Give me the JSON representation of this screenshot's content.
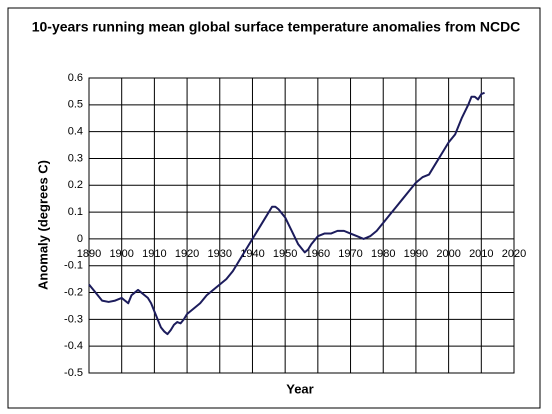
{
  "chart_data": {
    "type": "line",
    "title": "10-years running mean global surface temperature anomalies from NCDC",
    "xlabel": "Year",
    "ylabel": "Anomaly (degrees C)",
    "xlim": [
      1890,
      2020
    ],
    "xticks": [
      1890,
      1900,
      1910,
      1920,
      1930,
      1940,
      1950,
      1960,
      1970,
      1980,
      1990,
      2000,
      2010,
      2020
    ],
    "ylim": [
      -0.5,
      0.6
    ],
    "yticks": [
      -0.5,
      -0.4,
      -0.3,
      -0.2,
      -0.1,
      0,
      0.1,
      0.2,
      0.3,
      0.4,
      0.5,
      0.6
    ],
    "grid": true,
    "x": [
      1890,
      1892,
      1894,
      1896,
      1898,
      1900,
      1901,
      1902,
      1903,
      1904,
      1905,
      1906,
      1907,
      1908,
      1909,
      1910,
      1911,
      1912,
      1913,
      1914,
      1915,
      1916,
      1917,
      1918,
      1919,
      1920,
      1922,
      1924,
      1926,
      1928,
      1930,
      1932,
      1934,
      1936,
      1938,
      1940,
      1942,
      1944,
      1946,
      1947,
      1948,
      1950,
      1952,
      1954,
      1956,
      1957,
      1958,
      1960,
      1962,
      1964,
      1966,
      1968,
      1970,
      1972,
      1974,
      1976,
      1978,
      1980,
      1982,
      1984,
      1986,
      1988,
      1990,
      1992,
      1994,
      1996,
      1998,
      2000,
      2002,
      2004,
      2006,
      2007,
      2008,
      2009,
      2010,
      2011
    ],
    "series": [
      {
        "name": "NCDC",
        "color": "#1c1c5c",
        "values": [
          -0.17,
          -0.2,
          -0.23,
          -0.235,
          -0.23,
          -0.22,
          -0.23,
          -0.24,
          -0.21,
          -0.2,
          -0.19,
          -0.2,
          -0.21,
          -0.22,
          -0.24,
          -0.27,
          -0.3,
          -0.33,
          -0.345,
          -0.355,
          -0.34,
          -0.32,
          -0.31,
          -0.315,
          -0.3,
          -0.28,
          -0.26,
          -0.24,
          -0.21,
          -0.19,
          -0.17,
          -0.15,
          -0.12,
          -0.08,
          -0.04,
          0,
          0.04,
          0.08,
          0.12,
          0.12,
          0.11,
          0.08,
          0.03,
          -0.02,
          -0.05,
          -0.04,
          -0.02,
          0.01,
          0.02,
          0.02,
          0.03,
          0.03,
          0.02,
          0.01,
          0,
          0.01,
          0.03,
          0.06,
          0.09,
          0.12,
          0.15,
          0.18,
          0.21,
          0.23,
          0.24,
          0.28,
          0.32,
          0.36,
          0.39,
          0.45,
          0.5,
          0.53,
          0.53,
          0.52,
          0.54,
          0.545
        ]
      }
    ]
  }
}
